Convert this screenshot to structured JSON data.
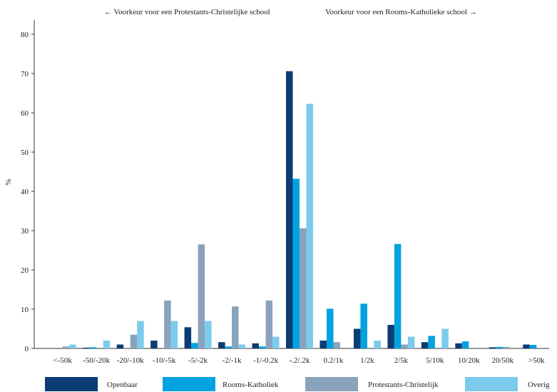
{
  "chart_data": {
    "type": "bar",
    "ylabel": "%",
    "xlabel": "",
    "ylim": [
      0,
      80
    ],
    "yticks": [
      0,
      10,
      20,
      30,
      40,
      50,
      60,
      70,
      80
    ],
    "annotations": {
      "left": "← Voorkeur voor een Protestants-Christelijke school",
      "right": "Voorkeur voor een Rooms-Katholieke school →"
    },
    "categories": [
      "<-50k",
      "-50/-20k",
      "-20/-10k",
      "-10/-5k",
      "-5/-2k",
      "-2/-1k",
      "-1/-0.2k",
      "-.2/.2k",
      "0.2/1k",
      "1/2k",
      "2/5k",
      "5/10k",
      "10/20k",
      "20/50k",
      ">50k"
    ],
    "series": [
      {
        "name": "Openbaar",
        "color": "#0b3c73",
        "values": [
          0,
          0.2,
          1,
          2,
          5.4,
          1.6,
          1.3,
          70.6,
          2,
          5,
          6,
          1.6,
          1.3,
          0.3,
          1
        ]
      },
      {
        "name": "Rooms-Katholiek",
        "color": "#00a3e0",
        "values": [
          0,
          0.3,
          0,
          0,
          1.4,
          0.5,
          0.5,
          43.2,
          10.1,
          11.4,
          26.6,
          3.2,
          1.8,
          0.4,
          0.9
        ]
      },
      {
        "name": "Protestants-Christelijk",
        "color": "#8aa3bc",
        "values": [
          0.5,
          0,
          3.5,
          12.2,
          26.5,
          10.7,
          12.2,
          30.6,
          1.6,
          0.2,
          1,
          0.2,
          0,
          0.4,
          0
        ]
      },
      {
        "name": "Overig",
        "color": "#7ccbec",
        "values": [
          1,
          2,
          7,
          7,
          7,
          1,
          3,
          62.3,
          0,
          2,
          3,
          5,
          0,
          0,
          0
        ]
      }
    ],
    "grid": false,
    "legend_position": "bottom"
  }
}
